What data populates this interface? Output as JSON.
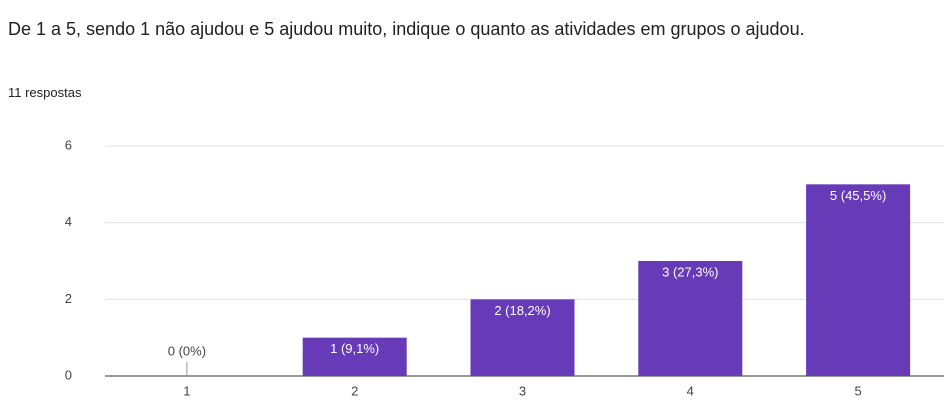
{
  "title": "De 1 a 5, sendo 1 não ajudou e 5 ajudou muito, indique o quanto as atividades em grupos o ajudou.",
  "subtitle": "11 respostas",
  "chart_data": {
    "type": "bar",
    "categories": [
      "1",
      "2",
      "3",
      "4",
      "5"
    ],
    "values": [
      0,
      1,
      2,
      3,
      5
    ],
    "value_labels": [
      "0 (0%)",
      "1 (9,1%)",
      "2 (18,2%)",
      "3 (27,3%)",
      "5 (45,5%)"
    ],
    "color": "#673ab7",
    "ylim": [
      0,
      6
    ],
    "yticks": [
      0,
      2,
      4,
      6
    ],
    "grid": true
  }
}
